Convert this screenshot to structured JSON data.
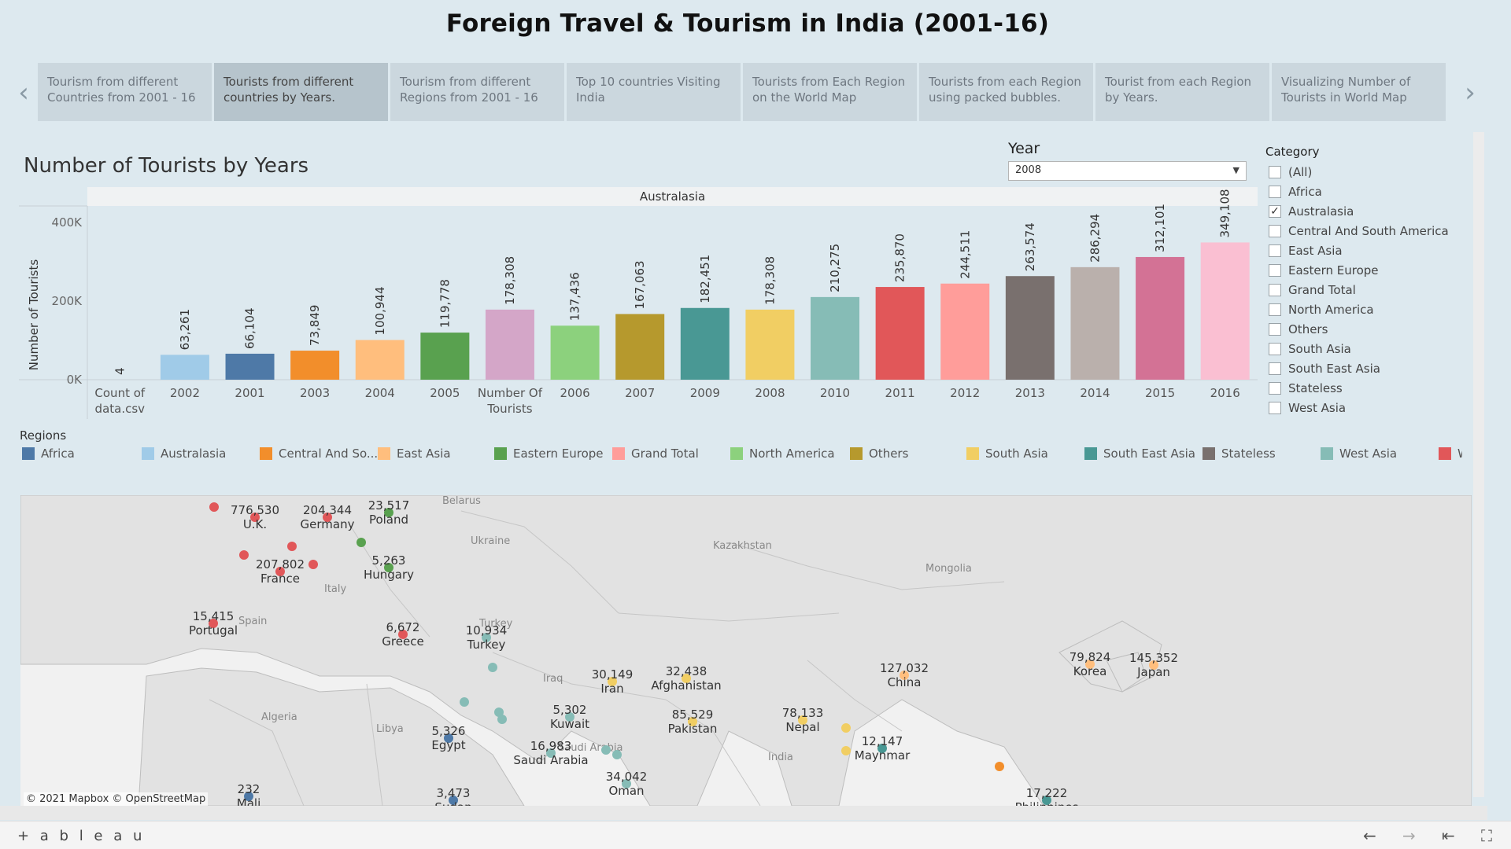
{
  "dashboard_title": "Foreign Travel & Tourism in India (2001-16)",
  "tabs": [
    {
      "label": "Tourism from different Countries from 2001 - 16"
    },
    {
      "label": "Tourists from different countries by Years."
    },
    {
      "label": "Tourism from different Regions from 2001 - 16"
    },
    {
      "label": "Top 10 countries Visiting India"
    },
    {
      "label": "Tourists from Each Region on the World Map"
    },
    {
      "label": "Tourists from each Region using packed bubbles."
    },
    {
      "label": "Tourist from each Region by Years."
    },
    {
      "label": "Visualizing Number of Tourists in World Map"
    }
  ],
  "active_tab_index": 1,
  "icons": {
    "prev": "chevron-left-icon",
    "next": "chevron-right-icon"
  },
  "sheet_title": "Number of Tourists by Years",
  "year_filter": {
    "label": "Year",
    "value": "2008"
  },
  "category_filter": {
    "title": "Category",
    "items": [
      {
        "label": "(All)",
        "checked": false
      },
      {
        "label": "Africa",
        "checked": false
      },
      {
        "label": "Australasia",
        "checked": true
      },
      {
        "label": "Central And South America",
        "checked": false
      },
      {
        "label": "East Asia",
        "checked": false
      },
      {
        "label": "Eastern Europe",
        "checked": false
      },
      {
        "label": "Grand Total",
        "checked": false
      },
      {
        "label": "North America",
        "checked": false
      },
      {
        "label": "Others",
        "checked": false
      },
      {
        "label": "South Asia",
        "checked": false
      },
      {
        "label": "South East Asia",
        "checked": false
      },
      {
        "label": "Stateless",
        "checked": false
      },
      {
        "label": "West Asia",
        "checked": false
      }
    ]
  },
  "chart_data": {
    "type": "bar",
    "panel_header": "Australasia",
    "ylabel": "Number of Tourists",
    "yticks": [
      "0K",
      "200K",
      "400K"
    ],
    "ylim": [
      0,
      450000
    ],
    "categories": [
      "Count of data.csv",
      "2002",
      "2001",
      "2003",
      "2004",
      "2005",
      "Number Of Tourists",
      "2006",
      "2007",
      "2009",
      "2008",
      "2010",
      "2011",
      "2012",
      "2013",
      "2014",
      "2015",
      "2016"
    ],
    "values": [
      4,
      63261,
      66104,
      73849,
      100944,
      119778,
      178308,
      137436,
      167063,
      182451,
      178308,
      210275,
      235870,
      244511,
      263574,
      286294,
      312101,
      349108
    ],
    "data_labels": [
      "4",
      "63,261",
      "66,104",
      "73,849",
      "100,944",
      "119,778",
      "178,308",
      "137,436",
      "167,063",
      "182,451",
      "178,308",
      "210,275",
      "235,870",
      "244,511",
      "263,574",
      "286,294",
      "312,101",
      "349,108"
    ],
    "colors": [
      "#a0cbe8",
      "#a0cbe8",
      "#4e79a7",
      "#f28e2b",
      "#ffbe7d",
      "#59a14f",
      "#d4a6c8",
      "#8cd17d",
      "#b6992d",
      "#499894",
      "#f1ce63",
      "#86bcb6",
      "#e15759",
      "#ff9d9a",
      "#79706e",
      "#bab0ac",
      "#d37295",
      "#fabfd2"
    ],
    "grid": false
  },
  "legend": {
    "title": "Regions",
    "items": [
      {
        "label": "Africa",
        "color": "#4e79a7"
      },
      {
        "label": "Australasia",
        "color": "#a0cbe8"
      },
      {
        "label": "Central And So...",
        "color": "#f28e2b"
      },
      {
        "label": "East Asia",
        "color": "#ffbe7d"
      },
      {
        "label": "Eastern Europe",
        "color": "#59a14f"
      },
      {
        "label": "Grand Total",
        "color": "#ff9d9a"
      },
      {
        "label": "North America",
        "color": "#8cd17d"
      },
      {
        "label": "Others",
        "color": "#b6992d"
      },
      {
        "label": "South Asia",
        "color": "#f1ce63"
      },
      {
        "label": "South East Asia",
        "color": "#499894"
      },
      {
        "label": "Stateless",
        "color": "#79706e"
      },
      {
        "label": "West Asia",
        "color": "#86bcb6"
      },
      {
        "label": "W",
        "color": "#e15759"
      }
    ]
  },
  "map": {
    "credit": "© 2021 Mapbox  © OpenStreetMap",
    "region_labels": [
      "Belarus",
      "Ukraine",
      "Kazakhstan",
      "Mongolia",
      "Spain",
      "Italy",
      "Iraq",
      "Algeria",
      "Libya",
      "India",
      "Turkey",
      "Saudi Arabia"
    ],
    "points": [
      {
        "country": "U.K.",
        "value": "776,530",
        "color": "#e15759"
      },
      {
        "country": "Germany",
        "value": "204,344",
        "color": "#e15759"
      },
      {
        "country": "Poland",
        "value": "23,517",
        "color": "#59a14f"
      },
      {
        "country": "Hungary",
        "value": "5,263",
        "color": "#59a14f"
      },
      {
        "country": "France",
        "value": "207,802",
        "color": "#e15759"
      },
      {
        "country": "Portugal",
        "value": "15,415",
        "color": "#e15759"
      },
      {
        "country": "Greece",
        "value": "6,672",
        "color": "#e15759"
      },
      {
        "country": "Turkey",
        "value": "10,934",
        "color": "#86bcb6"
      },
      {
        "country": "Iran",
        "value": "30,149",
        "color": "#f1ce63"
      },
      {
        "country": "Afghanistan",
        "value": "32,438",
        "color": "#f1ce63"
      },
      {
        "country": "Kuwait",
        "value": "5,302",
        "color": "#86bcb6"
      },
      {
        "country": "Egypt",
        "value": "5,326",
        "color": "#4e79a7"
      },
      {
        "country": "Saudi Arabia",
        "value": "16,983",
        "color": "#86bcb6"
      },
      {
        "country": "Pakistan",
        "value": "85,529",
        "color": "#f1ce63"
      },
      {
        "country": "Nepal",
        "value": "78,133",
        "color": "#f1ce63"
      },
      {
        "country": "China",
        "value": "127,032",
        "color": "#ffbe7d"
      },
      {
        "country": "Korea",
        "value": "79,824",
        "color": "#ffbe7d"
      },
      {
        "country": "Japan",
        "value": "145,352",
        "color": "#ffbe7d"
      },
      {
        "country": "Maynmar",
        "value": "12,147",
        "color": "#499894"
      },
      {
        "country": "Oman",
        "value": "34,042",
        "color": "#86bcb6"
      },
      {
        "country": "Sudan",
        "value": "3,473",
        "color": "#4e79a7"
      },
      {
        "country": "Mali",
        "value": "232",
        "color": "#4e79a7"
      },
      {
        "country": "Philippines",
        "value": "17,222",
        "color": "#499894"
      }
    ]
  },
  "footer": {
    "brand": "+ a b l e a u",
    "icons": [
      "undo-icon",
      "redo-icon",
      "revert-icon",
      "fullscreen-icon"
    ]
  }
}
